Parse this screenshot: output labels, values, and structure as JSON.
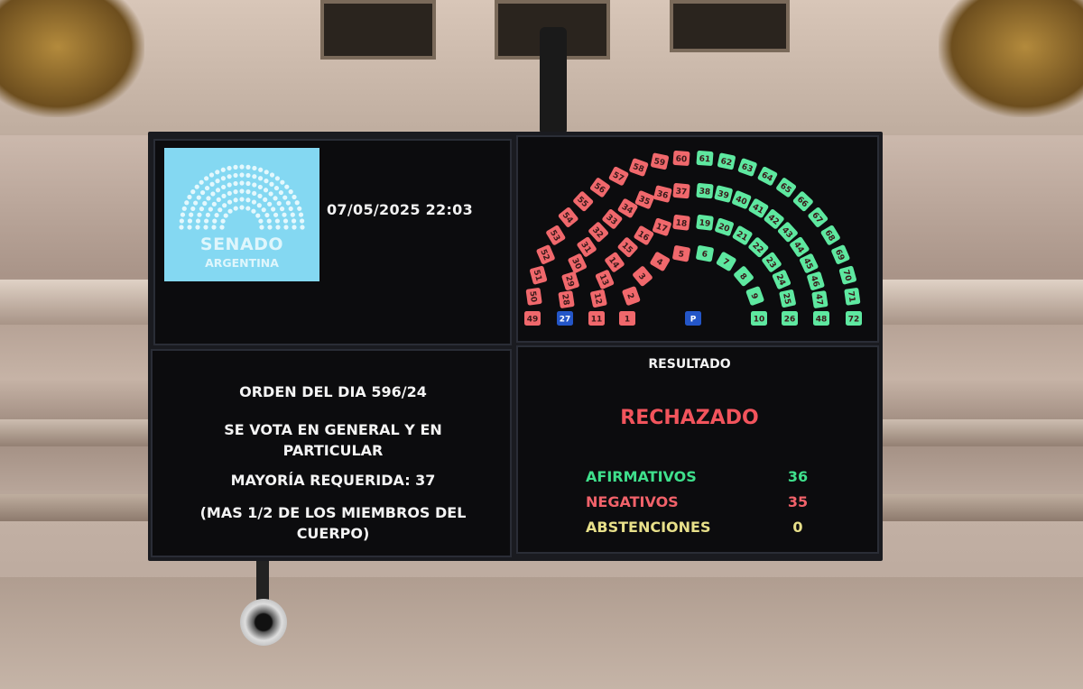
{
  "logo": {
    "line1": "SENADO",
    "line2": "ARGENTINA"
  },
  "datetime": "07/05/2025 22:03",
  "motion": {
    "title": "ORDEN DEL DIA 596/24",
    "vote_type": "SE VOTA EN GENERAL Y EN PARTICULAR",
    "majority": "MAYORÍA REQUERIDA: 37",
    "majority_note": "(MAS 1/2 DE LOS MIEMBROS DEL CUERPO)"
  },
  "result": {
    "heading": "RESULTADO",
    "outcome": "RECHAZADO",
    "rows": [
      {
        "label": "AFIRMATIVOS",
        "value": "36",
        "color": "#3fe08c"
      },
      {
        "label": "NEGATIVOS",
        "value": "35",
        "color": "#f2626a"
      },
      {
        "label": "ABSTENCIONES",
        "value": "0",
        "color": "#e8e08a"
      }
    ]
  },
  "colors": {
    "affirmative": "#5ee8a0",
    "negative": "#f0686c",
    "absent": "#2456c8",
    "outcome": "#f2545c"
  },
  "hemicycle": {
    "president_label": "P",
    "rows": [
      {
        "left": [
          [
            "1",
            "negative"
          ],
          [
            "2",
            "negative"
          ],
          [
            "3",
            "negative"
          ],
          [
            "4",
            "negative"
          ],
          [
            "5",
            "negative"
          ]
        ],
        "right": [
          [
            "6",
            "affirmative"
          ],
          [
            "7",
            "affirmative"
          ],
          [
            "8",
            "affirmative"
          ],
          [
            "9",
            "affirmative"
          ],
          [
            "10",
            "affirmative"
          ]
        ]
      },
      {
        "left": [
          [
            "11",
            "negative"
          ],
          [
            "12",
            "negative"
          ],
          [
            "13",
            "negative"
          ],
          [
            "14",
            "negative"
          ],
          [
            "15",
            "negative"
          ],
          [
            "16",
            "negative"
          ],
          [
            "17",
            "negative"
          ],
          [
            "18",
            "negative"
          ]
        ],
        "right": [
          [
            "19",
            "affirmative"
          ],
          [
            "20",
            "affirmative"
          ],
          [
            "21",
            "affirmative"
          ],
          [
            "22",
            "affirmative"
          ],
          [
            "23",
            "affirmative"
          ],
          [
            "24",
            "affirmative"
          ],
          [
            "25",
            "affirmative"
          ],
          [
            "26",
            "affirmative"
          ]
        ]
      },
      {
        "left": [
          [
            "27",
            "absent"
          ],
          [
            "28",
            "negative"
          ],
          [
            "29",
            "negative"
          ],
          [
            "30",
            "negative"
          ],
          [
            "31",
            "negative"
          ],
          [
            "32",
            "negative"
          ],
          [
            "33",
            "negative"
          ],
          [
            "34",
            "negative"
          ],
          [
            "35",
            "negative"
          ],
          [
            "36",
            "negative"
          ],
          [
            "37",
            "negative"
          ]
        ],
        "right": [
          [
            "38",
            "affirmative"
          ],
          [
            "39",
            "affirmative"
          ],
          [
            "40",
            "affirmative"
          ],
          [
            "41",
            "affirmative"
          ],
          [
            "42",
            "affirmative"
          ],
          [
            "43",
            "affirmative"
          ],
          [
            "44",
            "affirmative"
          ],
          [
            "45",
            "affirmative"
          ],
          [
            "46",
            "affirmative"
          ],
          [
            "47",
            "affirmative"
          ],
          [
            "48",
            "affirmative"
          ]
        ]
      },
      {
        "left": [
          [
            "49",
            "negative"
          ],
          [
            "50",
            "negative"
          ],
          [
            "51",
            "negative"
          ],
          [
            "52",
            "negative"
          ],
          [
            "53",
            "negative"
          ],
          [
            "54",
            "negative"
          ],
          [
            "55",
            "negative"
          ],
          [
            "56",
            "negative"
          ],
          [
            "57",
            "negative"
          ],
          [
            "58",
            "negative"
          ],
          [
            "59",
            "negative"
          ],
          [
            "60",
            "negative"
          ]
        ],
        "right": [
          [
            "61",
            "affirmative"
          ],
          [
            "62",
            "affirmative"
          ],
          [
            "63",
            "affirmative"
          ],
          [
            "64",
            "affirmative"
          ],
          [
            "65",
            "affirmative"
          ],
          [
            "66",
            "affirmative"
          ],
          [
            "67",
            "affirmative"
          ],
          [
            "68",
            "affirmative"
          ],
          [
            "69",
            "affirmative"
          ],
          [
            "70",
            "affirmative"
          ],
          [
            "71",
            "affirmative"
          ],
          [
            "72",
            "affirmative"
          ]
        ]
      }
    ]
  }
}
